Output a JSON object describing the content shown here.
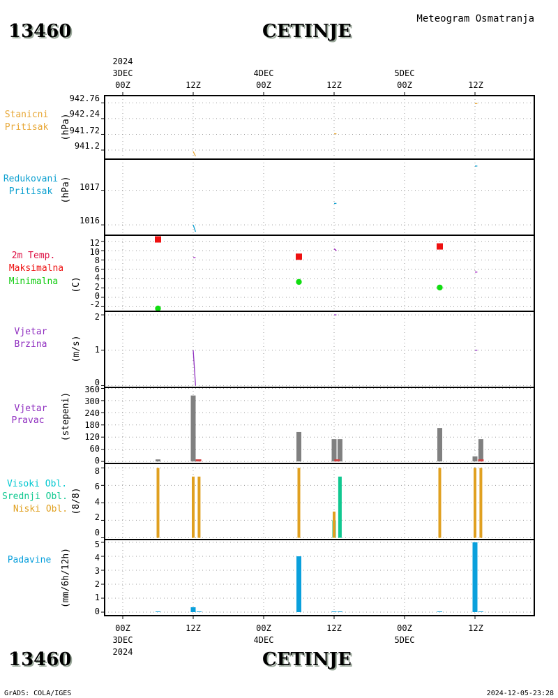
{
  "header": {
    "station_id": "13460",
    "station_name": "CETINJE",
    "meteogram_title": "Meteogram Osmatranja"
  },
  "footer": {
    "credit": "GrADS: COLA/IGES",
    "timestamp": "2024-12-05-23:28"
  },
  "time_axis": {
    "top": {
      "ticks": [
        "00Z",
        "12Z",
        "00Z",
        "12Z",
        "00Z",
        "12Z"
      ],
      "date1": "3DEC",
      "year": "2024",
      "date2": "4DEC",
      "date3": "5DEC"
    },
    "bottom": {
      "ticks": [
        "00Z",
        "12Z",
        "00Z",
        "12Z",
        "00Z",
        "12Z"
      ],
      "date1": "3DEC",
      "year": "2024",
      "date2": "4DEC",
      "date3": "5DEC"
    }
  },
  "colors": {
    "station_pressure": "#e8a838",
    "reduced_pressure": "#0da0d0",
    "tmax": "#ee1111",
    "tmin": "#11dd11",
    "temp_line": "#a020c0",
    "wind": "#9030c0",
    "wind_dir_bar": "#808080",
    "cloud_high": "#00d0d0",
    "cloud_mid": "#10c890",
    "cloud_low": "#e0a020",
    "precip": "#0aa0dc"
  },
  "panels": {
    "station_pressure": {
      "labels": [
        "Stanicni",
        "Pritisak"
      ],
      "unit": "(hPa)",
      "ticks": [
        "941.2",
        "941.72",
        "942.24",
        "942.76"
      ]
    },
    "reduced_pressure": {
      "labels": [
        "Redukovani",
        "Pritisak"
      ],
      "unit": "(hPa)",
      "ticks": [
        "1016",
        "1017"
      ]
    },
    "temperature": {
      "labels": [
        "2m Temp.",
        "Maksimalna",
        "Minimalna"
      ],
      "unit": "(C)",
      "ticks": [
        "-2",
        "0",
        "2",
        "4",
        "6",
        "8",
        "10",
        "12"
      ]
    },
    "wind_speed": {
      "labels": [
        "Vjetar",
        "Brzina"
      ],
      "unit": "(m/s)",
      "ticks": [
        "0",
        "1",
        "2"
      ]
    },
    "wind_direction": {
      "labels": [
        "Vjetar",
        "Pravac"
      ],
      "unit": "(stepeni)",
      "ticks": [
        "0",
        "60",
        "120",
        "180",
        "240",
        "300",
        "360"
      ]
    },
    "clouds": {
      "labels": [
        "Visoki Obl.",
        "Srednji Obl.",
        "Niski Obl."
      ],
      "unit": "(8/8)",
      "ticks": [
        "0",
        "2",
        "4",
        "6",
        "8"
      ]
    },
    "precipitation": {
      "labels": [
        "Padavine"
      ],
      "unit": "(mm/6h/12h)",
      "ticks": [
        "0",
        "1",
        "2",
        "3",
        "4",
        "5"
      ]
    }
  },
  "chart_data": [
    {
      "type": "line",
      "name": "station_pressure",
      "ylim": [
        940.9,
        943.0
      ],
      "segments": [
        {
          "x": [
            12.0,
            12.4
          ],
          "y": [
            941.15,
            941.0
          ]
        },
        {
          "x": [
            36.0,
            36.4
          ],
          "y": [
            941.74,
            941.74
          ]
        },
        {
          "x": [
            60.0,
            60.4
          ],
          "y": [
            942.74,
            942.74
          ]
        }
      ]
    },
    {
      "type": "line",
      "name": "reduced_pressure",
      "ylim": [
        1015.7,
        1017.9
      ],
      "segments": [
        {
          "x": [
            12.0,
            12.4
          ],
          "y": [
            1016.0,
            1015.8
          ]
        },
        {
          "x": [
            36.0,
            36.4
          ],
          "y": [
            1016.62,
            1016.62
          ]
        },
        {
          "x": [
            60.0,
            60.4
          ],
          "y": [
            1017.7,
            1017.7
          ]
        }
      ]
    },
    {
      "type": "scatter",
      "name": "temperature",
      "ylim": [
        -3.0,
        13.3
      ],
      "tmax": {
        "x": [
          6,
          30,
          54
        ],
        "y": [
          12.4,
          8.7,
          10.9
        ]
      },
      "tmin": {
        "x": [
          6,
          30,
          54
        ],
        "y": [
          -2.4,
          3.3,
          2.1
        ]
      },
      "t2m_segments": [
        {
          "x": [
            12.0,
            12.4
          ],
          "y": [
            8.5,
            8.5
          ]
        },
        {
          "x": [
            36.0,
            36.4
          ],
          "y": [
            10.4,
            10.0
          ]
        },
        {
          "x": [
            60.0,
            60.4
          ],
          "y": [
            5.4,
            5.4
          ]
        }
      ]
    },
    {
      "type": "line",
      "name": "wind_speed",
      "ylim": [
        -0.05,
        2.1
      ],
      "segments": [
        {
          "x": [
            12.0,
            12.4
          ],
          "y": [
            1.0,
            0.0
          ]
        },
        {
          "x": [
            36.0,
            36.4
          ],
          "y": [
            2.0,
            2.0
          ]
        },
        {
          "x": [
            60.0,
            60.4
          ],
          "y": [
            1.0,
            1.0
          ]
        }
      ]
    },
    {
      "type": "bar",
      "name": "wind_direction",
      "ylim": [
        -10,
        365
      ],
      "bars": [
        {
          "x": 6,
          "y": 10
        },
        {
          "x": 12,
          "y": 325
        },
        {
          "x": 30,
          "y": 145
        },
        {
          "x": 36,
          "y": 110
        },
        {
          "x": 37,
          "y": 110
        },
        {
          "x": 54,
          "y": 165
        },
        {
          "x": 60,
          "y": 25
        },
        {
          "x": 61,
          "y": 110
        }
      ],
      "calm_marks": [
        12.9,
        36.5,
        61.0
      ]
    },
    {
      "type": "bar",
      "name": "clouds",
      "ylim": [
        -0.2,
        8.5
      ],
      "low": [
        {
          "x": 6,
          "y": 8
        },
        {
          "x": 12,
          "y": 7
        },
        {
          "x": 13,
          "y": 7
        },
        {
          "x": 30,
          "y": 8
        },
        {
          "x": 36,
          "y": 3
        },
        {
          "x": 54,
          "y": 8
        },
        {
          "x": 60,
          "y": 8
        },
        {
          "x": 61,
          "y": 8
        }
      ],
      "mid": [
        {
          "x": 36,
          "y": 2
        },
        {
          "x": 37,
          "y": 7
        }
      ]
    },
    {
      "type": "bar",
      "name": "precipitation",
      "ylim": [
        -0.25,
        5.2
      ],
      "bars": [
        {
          "x": 6,
          "y": 0.05
        },
        {
          "x": 12,
          "y": 0.35
        },
        {
          "x": 13,
          "y": 0.05
        },
        {
          "x": 30,
          "y": 4.0
        },
        {
          "x": 36,
          "y": 0.05
        },
        {
          "x": 37,
          "y": 0.05
        },
        {
          "x": 54,
          "y": 0.05
        },
        {
          "x": 60,
          "y": 5.0
        },
        {
          "x": 61,
          "y": 0.05
        }
      ]
    }
  ]
}
